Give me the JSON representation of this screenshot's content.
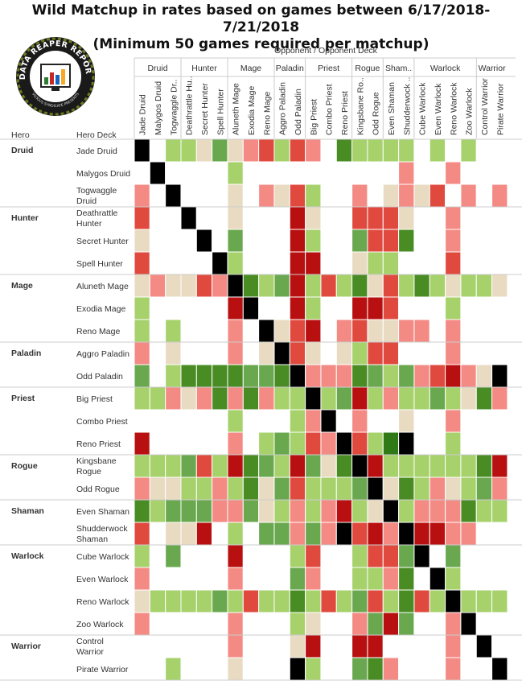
{
  "title": {
    "line1": "Wild Matchup in rates based on games between 6/17/2018-7/21/2018",
    "line2": "(Minimum 50 games required per matchup)"
  },
  "logo": {
    "text_top": "DATA REAPER REPORT",
    "text_bottom": "VICIOUS SYNDICATE PRESENTS"
  },
  "chart_data": {
    "type": "heatmap",
    "column_header": "Opponent  /  Opponent Deck",
    "row_header_hero": "Hero",
    "row_header_deck": "Hero Deck",
    "heroes": [
      "Druid",
      "Hunter",
      "Mage",
      "Paladin",
      "Priest",
      "Rogue",
      "Shaman",
      "Warlock",
      "Warrior"
    ],
    "column_hero_labels": [
      "Druid",
      "Hunter",
      "Mage",
      "Paladin",
      "Priest",
      "Rogue",
      "Sham..",
      "Warlock",
      "Warrior"
    ],
    "decks": [
      {
        "hero": "Druid",
        "col": "Jade Druid",
        "row": "Jade Druid"
      },
      {
        "hero": "Druid",
        "col": "Malygos Druid",
        "row": "Malygos Druid"
      },
      {
        "hero": "Druid",
        "col": "Togwaggle Dr..",
        "row": "Togwaggle Druid"
      },
      {
        "hero": "Hunter",
        "col": "Deathrattle Hu..",
        "row": "Deathrattle Hunter"
      },
      {
        "hero": "Hunter",
        "col": "Secret Hunter",
        "row": "Secret Hunter"
      },
      {
        "hero": "Hunter",
        "col": "Spell Hunter",
        "row": "Spell Hunter"
      },
      {
        "hero": "Mage",
        "col": "Aluneth Mage",
        "row": "Aluneth Mage"
      },
      {
        "hero": "Mage",
        "col": "Exodia Mage",
        "row": "Exodia Mage"
      },
      {
        "hero": "Mage",
        "col": "Reno Mage",
        "row": "Reno Mage"
      },
      {
        "hero": "Paladin",
        "col": "Aggro Paladin",
        "row": "Aggro Paladin"
      },
      {
        "hero": "Paladin",
        "col": "Odd Paladin",
        "row": "Odd Paladin"
      },
      {
        "hero": "Priest",
        "col": "Big Priest",
        "row": "Big Priest"
      },
      {
        "hero": "Priest",
        "col": "Combo Priest",
        "row": "Combo Priest"
      },
      {
        "hero": "Priest",
        "col": "Reno Priest",
        "row": "Reno Priest"
      },
      {
        "hero": "Rogue",
        "col": "Kingsbane Ro..",
        "row": "Kingsbane Rogue"
      },
      {
        "hero": "Rogue",
        "col": "Odd Rogue",
        "row": "Odd Rogue"
      },
      {
        "hero": "Shaman",
        "col": "Even Shaman",
        "row": "Even Shaman"
      },
      {
        "hero": "Shaman",
        "col": "Shudderwock ..",
        "row": "Shudderwock Shaman"
      },
      {
        "hero": "Warlock",
        "col": "Cube Warlock",
        "row": "Cube Warlock"
      },
      {
        "hero": "Warlock",
        "col": "Even Warlock",
        "row": "Even Warlock"
      },
      {
        "hero": "Warlock",
        "col": "Reno Warlock",
        "row": "Reno Warlock"
      },
      {
        "hero": "Warlock",
        "col": "Zoo Warlock",
        "row": "Zoo Warlock"
      },
      {
        "hero": "Warrior",
        "col": "Control Warrior",
        "row": "Control Warrior"
      },
      {
        "hero": "Warrior",
        "col": "Pirate Warrior",
        "row": "Pirate Warrior"
      }
    ],
    "color_scale": {
      "0": "#f2f2f2",
      "1": "#a6d16b",
      "2": "#6aa84f",
      "3": "#4a8c24",
      "4": "#2f7a16",
      "-1": "#e9dbc2",
      "-2": "#f48a84",
      "-3": "#e04a3e",
      "-4": "#b81010",
      "self": "#000000",
      "none": "#ffffff"
    },
    "legend": "none",
    "matrix": [
      [
        "X",
        "",
        "1",
        "1",
        "-1",
        "2",
        "-1",
        "-2",
        "-3",
        "1",
        "-3",
        "-2",
        "",
        "3",
        "1",
        "1",
        "1",
        "1",
        "",
        "1",
        "",
        "1",
        "",
        ""
      ],
      [
        "",
        "X",
        "",
        "",
        "",
        "",
        "1",
        "",
        "",
        "",
        "",
        "",
        "",
        "",
        "",
        "",
        "",
        "-2",
        "",
        "",
        "-2",
        "",
        "",
        ""
      ],
      [
        "-2",
        "",
        "X",
        "",
        "",
        "",
        "-1",
        "",
        "-2",
        "-1",
        "-3",
        "1",
        "",
        "",
        "-2",
        "",
        "-1",
        "-2",
        "-1",
        "-3",
        "",
        "-2",
        "",
        "-2"
      ],
      [
        "-3",
        "",
        "",
        "X",
        "",
        "",
        "-1",
        "",
        "",
        "",
        "-4",
        "-1",
        "",
        "",
        "-3",
        "-3",
        "-3",
        "-1",
        "",
        "",
        "-2",
        "",
        "",
        ""
      ],
      [
        "-1",
        "",
        "",
        "",
        "X",
        "",
        "2",
        "",
        "",
        "",
        "-4",
        "1",
        "",
        "",
        "2",
        "-3",
        "-3",
        "3",
        "",
        "",
        "-2",
        "",
        "",
        ""
      ],
      [
        "-3",
        "",
        "",
        "",
        "",
        "X",
        "1",
        "",
        "",
        "",
        "-4",
        "-4",
        "",
        "",
        "-1",
        "1",
        "1",
        "",
        "",
        "",
        "-3",
        "",
        "",
        ""
      ],
      [
        "-1",
        "-2",
        "-1",
        "-1",
        "-3",
        "-2",
        "X",
        "3",
        "1",
        "2",
        "-4",
        "1",
        "-3",
        "1",
        "3",
        "-1",
        "-3",
        "1",
        "3",
        "1",
        "-1",
        "1",
        "1",
        "-1"
      ],
      [
        "1",
        "",
        "",
        "",
        "",
        "",
        "-4",
        "X",
        "",
        "",
        "-4",
        "1",
        "",
        "",
        "-4",
        "-4",
        "-3",
        "",
        "",
        "",
        "1",
        "",
        "",
        ""
      ],
      [
        "1",
        "",
        "1",
        "",
        "",
        "",
        "-2",
        "",
        "X",
        "-1",
        "-3",
        "-4",
        "",
        "-2",
        "-3",
        "-1",
        "-1",
        "-2",
        "-2",
        "",
        "-2",
        "",
        "",
        ""
      ],
      [
        "-2",
        "",
        "-1",
        "",
        "",
        "",
        "-2",
        "",
        "-1",
        "X",
        "-3",
        "-1",
        "",
        "-1",
        "1",
        "-3",
        "-3",
        "",
        "",
        "",
        "-2",
        "",
        "",
        ""
      ],
      [
        "2",
        "",
        "1",
        "3",
        "3",
        "3",
        "3",
        "2",
        "2",
        "3",
        "X",
        "-2",
        "-2",
        "-2",
        "3",
        "2",
        "1",
        "2",
        "-2",
        "-3",
        "-4",
        "-2",
        "-1",
        "X"
      ],
      [
        "1",
        "1",
        "-2",
        "-1",
        "-2",
        "3",
        "-2",
        "3",
        "-2",
        "1",
        "1",
        "X",
        "1",
        "2",
        "-4",
        "1",
        "-2",
        "1",
        "1",
        "2",
        "1",
        "-1",
        "3",
        "-2"
      ],
      [
        "",
        "",
        "",
        "",
        "",
        "",
        "1",
        "",
        "",
        "",
        "1",
        "-2",
        "X",
        "",
        "-2",
        "",
        "",
        "-1",
        "",
        "",
        "-2",
        "",
        "",
        ""
      ],
      [
        "-4",
        "",
        "",
        "",
        "",
        "",
        "-2",
        "",
        "1",
        "2",
        "1",
        "-3",
        "-2",
        "X",
        "-3",
        "1",
        "4",
        "X",
        "",
        "",
        "1",
        "",
        "",
        ""
      ],
      [
        "1",
        "1",
        "1",
        "2",
        "-3",
        "1",
        "-4",
        "3",
        "2",
        "1",
        "-4",
        "2",
        "-1",
        "3",
        "X",
        "-4",
        "1",
        "1",
        "1",
        "1",
        "1",
        "1",
        "3",
        "-4"
      ],
      [
        "-2",
        "-1",
        "-1",
        "1",
        "1",
        "-2",
        "1",
        "3",
        "-1",
        "2",
        "-3",
        "1",
        "1",
        "1",
        "2",
        "X",
        "-1",
        "3",
        "1",
        "-2",
        "-1",
        "1",
        "2",
        "-2"
      ],
      [
        "3",
        "1",
        "2",
        "2",
        "2",
        "-2",
        "-2",
        "2",
        "-1",
        "1",
        "-2",
        "1",
        "-2",
        "-4",
        "1",
        "-1",
        "X",
        "1",
        "-2",
        "-2",
        "-2",
        "3",
        "1",
        "1"
      ],
      [
        "-3",
        "",
        "-1",
        "-1",
        "-4",
        "",
        "1",
        "",
        "2",
        "2",
        "-2",
        "2",
        "-2",
        "X",
        "-3",
        "-4",
        "-2",
        "X",
        "-4",
        "-4",
        "-2",
        "-2",
        "",
        ""
      ],
      [
        "1",
        "",
        "2",
        "",
        "",
        "",
        "-4",
        "",
        "",
        "",
        "1",
        "-3",
        "",
        "",
        "1",
        "-3",
        "-3",
        "2",
        "X",
        "",
        "2",
        "",
        "",
        ""
      ],
      [
        "-2",
        "",
        "",
        "",
        "",
        "",
        "-2",
        "",
        "",
        "",
        "2",
        "-2",
        "",
        "",
        "1",
        "1",
        "-2",
        "3",
        "",
        "X",
        "1",
        "",
        "",
        ""
      ],
      [
        "-1",
        "1",
        "1",
        "1",
        "1",
        "2",
        "1",
        "-3",
        "1",
        "1",
        "3",
        "1",
        "-3",
        "1",
        "2",
        "-3",
        "1",
        "3",
        "-3",
        "1",
        "X",
        "1",
        "1",
        "1"
      ],
      [
        "-2",
        "",
        "",
        "",
        "",
        "",
        "-2",
        "",
        "",
        "",
        "1",
        "-1",
        "",
        "",
        "-2",
        "2",
        "-4",
        "2",
        "",
        "",
        "-2",
        "X",
        "",
        ""
      ],
      [
        "",
        "",
        "",
        "",
        "",
        "",
        "-2",
        "",
        "",
        "",
        "-1",
        "-4",
        "",
        "",
        "-4",
        "-4",
        "",
        "",
        "",
        "",
        "-2",
        "",
        "X",
        ""
      ],
      [
        "",
        "",
        "1",
        "",
        "",
        "",
        "-1",
        "",
        "",
        "",
        "X",
        "1",
        "",
        "",
        "2",
        "3",
        "-2",
        "",
        "",
        "",
        "-2",
        "",
        "",
        "X"
      ]
    ]
  }
}
